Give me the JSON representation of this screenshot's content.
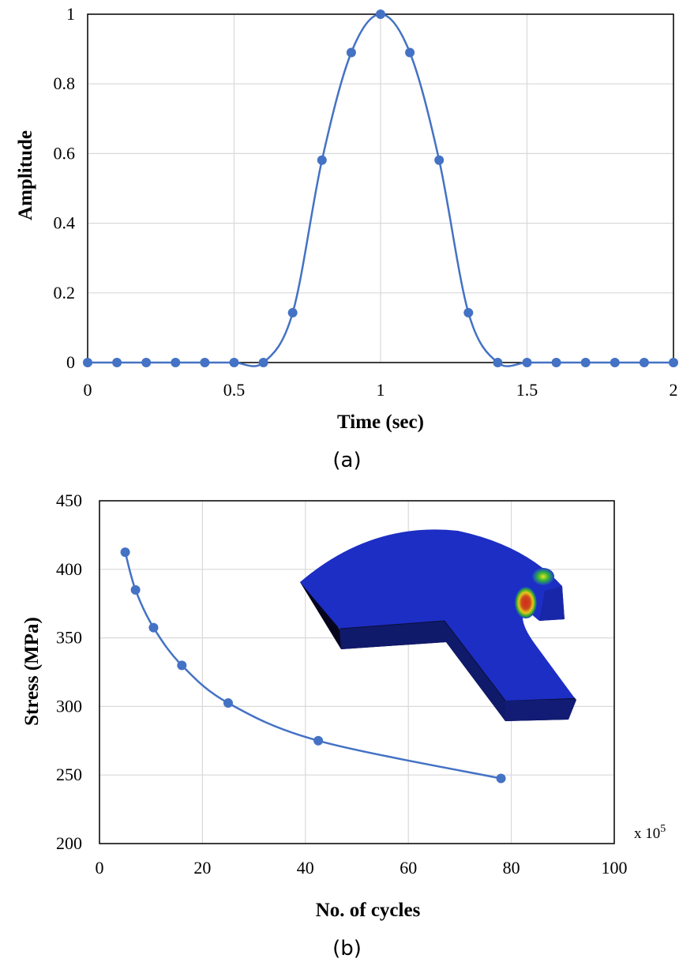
{
  "chart_data": [
    {
      "type": "scatter",
      "panel_label": "(a)",
      "xlabel": "Time (sec)",
      "ylabel": "Amplitude",
      "xlim": [
        0,
        2
      ],
      "ylim": [
        0,
        1
      ],
      "xticks": [
        "0",
        "0.5",
        "1",
        "1.5",
        "2"
      ],
      "yticks": [
        "0",
        "0.2",
        "0.4",
        "0.6",
        "0.8",
        "1"
      ],
      "grid": true,
      "line": "smooth",
      "color": "#4472C4",
      "series": [
        {
          "x": [
            0,
            0.1,
            0.2,
            0.3,
            0.4,
            0.5,
            0.6,
            0.7,
            0.8,
            0.9,
            1.0,
            1.1,
            1.2,
            1.3,
            1.4,
            1.5,
            1.6,
            1.7,
            1.8,
            1.9,
            2.0
          ],
          "y": [
            0,
            0,
            0,
            0,
            0,
            0,
            0,
            0.143,
            0.581,
            0.89,
            1.0,
            0.89,
            0.581,
            0.143,
            0,
            0,
            0,
            0,
            0,
            0,
            0
          ]
        }
      ]
    },
    {
      "type": "scatter",
      "panel_label": "(b)",
      "xlabel": "No. of cycles",
      "ylabel": "Stress (MPa)",
      "x_multiplier_base": "x 10",
      "x_multiplier_exp": "5",
      "xlim": [
        0,
        100
      ],
      "ylim": [
        200,
        450
      ],
      "xticks": [
        "0",
        "20",
        "40",
        "60",
        "80",
        "100"
      ],
      "yticks": [
        "200",
        "250",
        "300",
        "350",
        "400",
        "450"
      ],
      "grid": true,
      "line": "smooth",
      "color": "#4472C4",
      "inset": "3D finite element model with stress contour",
      "series": [
        {
          "x": [
            5,
            7,
            10.5,
            16,
            25,
            42.5,
            78
          ],
          "y": [
            412.5,
            385,
            357.5,
            330,
            302.5,
            275,
            247.5
          ]
        }
      ]
    }
  ]
}
